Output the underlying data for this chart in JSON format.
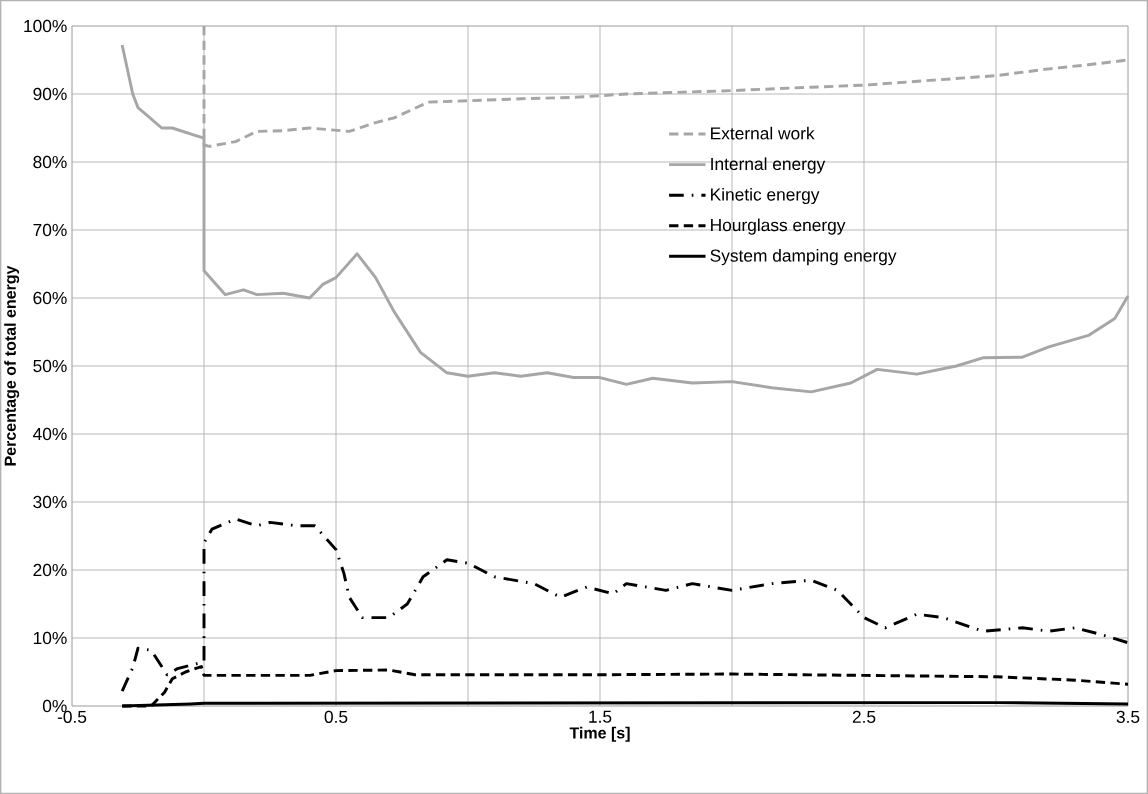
{
  "chart_data": {
    "type": "line",
    "xlabel": "Time [s]",
    "ylabel": "Percentage of total energy",
    "xlim": [
      -0.5,
      3.5
    ],
    "ylim": [
      0,
      100
    ],
    "xticks": [
      -0.5,
      {
        "value": 0,
        "label": null
      },
      0.5,
      {
        "value": 1,
        "label": null
      },
      1.5,
      {
        "value": 2,
        "label": null
      },
      2.5,
      {
        "value": 3,
        "label": null
      },
      3.5
    ],
    "yticks": [
      {
        "value": 0,
        "label": "0%"
      },
      {
        "value": 10,
        "label": "10%"
      },
      {
        "value": 20,
        "label": "20%"
      },
      {
        "value": 30,
        "label": "30%"
      },
      {
        "value": 40,
        "label": "40%"
      },
      {
        "value": 50,
        "label": "50%"
      },
      {
        "value": 60,
        "label": "60%"
      },
      {
        "value": 70,
        "label": "70%"
      },
      {
        "value": 80,
        "label": "80%"
      },
      {
        "value": 90,
        "label": "90%"
      },
      {
        "value": 100,
        "label": "100%"
      }
    ],
    "grid": true,
    "legend": "right",
    "marker": "none",
    "series": [
      {
        "name": "External work",
        "color": "#a6a6a6",
        "line_style": "dashed",
        "x": [
          0,
          0,
          0.02,
          0.12,
          0.2,
          0.3,
          0.4,
          0.55,
          0.65,
          0.72,
          0.85,
          1.0,
          1.2,
          1.4,
          1.6,
          2.0,
          2.3,
          2.5,
          2.75,
          3.0,
          3.2,
          3.35,
          3.5
        ],
        "values": [
          100,
          82.5,
          82.3,
          83,
          84.5,
          84.6,
          85,
          84.5,
          85.8,
          86.5,
          88.8,
          89,
          89.3,
          89.5,
          90,
          90.5,
          91,
          91.3,
          92,
          92.7,
          93.7,
          94.3,
          95
        ]
      },
      {
        "name": "Internal energy",
        "color": "#a6a6a6",
        "line_style": "solid",
        "x": [
          -0.31,
          -0.27,
          -0.25,
          -0.16,
          -0.12,
          -0.04,
          0,
          0,
          0.08,
          0.15,
          0.2,
          0.3,
          0.4,
          0.45,
          0.5,
          0.58,
          0.65,
          0.72,
          0.82,
          0.92,
          1.0,
          1.1,
          1.2,
          1.3,
          1.4,
          1.5,
          1.6,
          1.7,
          1.85,
          2.0,
          2.15,
          2.3,
          2.45,
          2.55,
          2.7,
          2.85,
          2.95,
          3.1,
          3.2,
          3.35,
          3.45,
          3.5
        ],
        "values": [
          97.2,
          90,
          88,
          85,
          85,
          84,
          83.5,
          64,
          60.5,
          61.2,
          60.5,
          60.7,
          60,
          62,
          63,
          66.5,
          63,
          58,
          52,
          49,
          48.5,
          49,
          48.5,
          49,
          48.3,
          48.3,
          47.3,
          48.2,
          47.5,
          47.7,
          46.8,
          46.2,
          47.5,
          49.5,
          48.8,
          50,
          51.2,
          51.3,
          52.8,
          54.5,
          57,
          60.3
        ]
      },
      {
        "name": "Kinetic energy",
        "color": "#000000",
        "line_style": "dashdot",
        "x": [
          -0.31,
          -0.27,
          -0.25,
          -0.2,
          -0.14,
          -0.1,
          -0.05,
          0,
          0,
          0.03,
          0.12,
          0.2,
          0.25,
          0.35,
          0.42,
          0.5,
          0.53,
          0.55,
          0.6,
          0.7,
          0.77,
          0.83,
          0.92,
          1.0,
          1.1,
          1.25,
          1.35,
          1.45,
          1.55,
          1.6,
          1.75,
          1.85,
          2.0,
          2.15,
          2.3,
          2.4,
          2.5,
          2.58,
          2.7,
          2.8,
          2.95,
          3.1,
          3.2,
          3.3,
          3.4,
          3.5
        ],
        "values": [
          2.2,
          5.6,
          8.5,
          8.2,
          4.6,
          5.5,
          6,
          6.5,
          24,
          26,
          27.5,
          26.5,
          27,
          26.5,
          26.5,
          23,
          19.5,
          16,
          13,
          13,
          15,
          19,
          21.5,
          21,
          19,
          18,
          16,
          17.5,
          16.5,
          18,
          17,
          18,
          17,
          18,
          18.5,
          17,
          13,
          11.5,
          13.5,
          13,
          11,
          11.5,
          11,
          11.5,
          10.5,
          9.3
        ]
      },
      {
        "name": "Hourglass energy",
        "color": "#000000",
        "line_style": "dashed",
        "x": [
          -0.31,
          -0.2,
          -0.15,
          -0.12,
          -0.07,
          -0.01,
          0,
          0.4,
          0.5,
          0.7,
          0.8,
          1.5,
          2.0,
          2.5,
          3.0,
          3.3,
          3.5
        ],
        "values": [
          0,
          0,
          2,
          4,
          5,
          5.8,
          4.5,
          4.5,
          5.2,
          5.3,
          4.6,
          4.6,
          4.7,
          4.5,
          4.3,
          3.8,
          3.2
        ]
      },
      {
        "name": "System damping energy",
        "color": "#000000",
        "line_style": "solid",
        "x": [
          -0.31,
          -0.05,
          0,
          3.0,
          3.5
        ],
        "values": [
          0,
          0.3,
          0.4,
          0.5,
          0.3
        ]
      }
    ]
  }
}
